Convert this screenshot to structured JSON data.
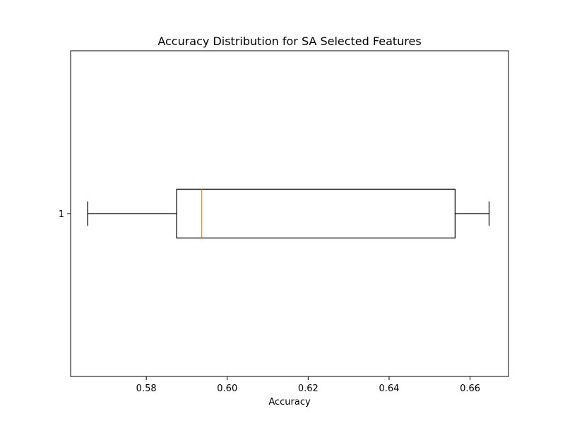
{
  "chart_data": {
    "type": "boxplot",
    "orientation": "horizontal",
    "title": "Accuracy Distribution for SA Selected Features",
    "xlabel": "Accuracy",
    "ylabel": "",
    "xlim": [
      0.5613,
      0.6695
    ],
    "x_ticks": [
      0.58,
      0.6,
      0.62,
      0.64,
      0.66
    ],
    "x_tick_labels": [
      "0.58",
      "0.60",
      "0.62",
      "0.64",
      "0.66"
    ],
    "y_ticks": [
      "1"
    ],
    "grid": false,
    "boxes": [
      {
        "label": "1",
        "whisker_low": 0.5655,
        "q1": 0.5875,
        "median": 0.5937,
        "q3": 0.6563,
        "whisker_high": 0.6647
      }
    ],
    "colors": {
      "box": "#000000",
      "median": "#ff7f0e",
      "axes": "#000000"
    }
  }
}
